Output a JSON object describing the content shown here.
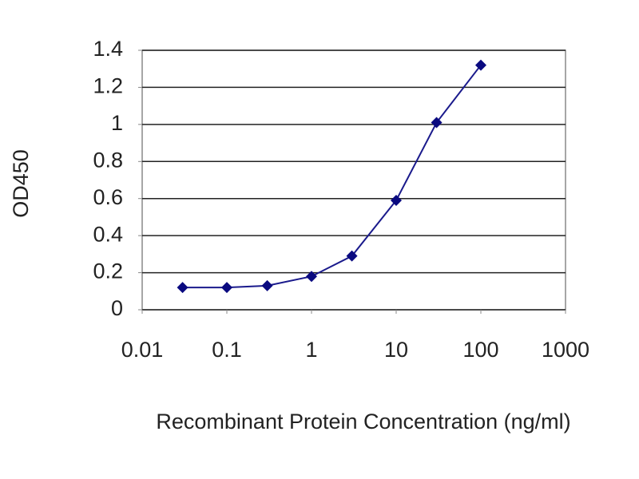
{
  "chart_data": {
    "type": "line",
    "title": null,
    "x_label": "Recombinant Protein Concentration (ng/ml)",
    "y_label": "OD450",
    "x": [
      0.03,
      0.1,
      0.3,
      1,
      3,
      10,
      30,
      100
    ],
    "values": [
      0.12,
      0.12,
      0.13,
      0.18,
      0.29,
      0.59,
      1.01,
      1.32
    ],
    "color": "#1a1a8c",
    "marker_color": "#0a0a80",
    "x_log": true,
    "xlim": [
      0.01,
      1000
    ],
    "xticks": [
      0.01,
      0.1,
      1,
      10,
      100,
      1000
    ],
    "ylim": [
      0,
      1.4
    ],
    "yticks": [
      0,
      0.2,
      0.4,
      0.6,
      0.8,
      1,
      1.2,
      1.4
    ],
    "grid": true
  }
}
